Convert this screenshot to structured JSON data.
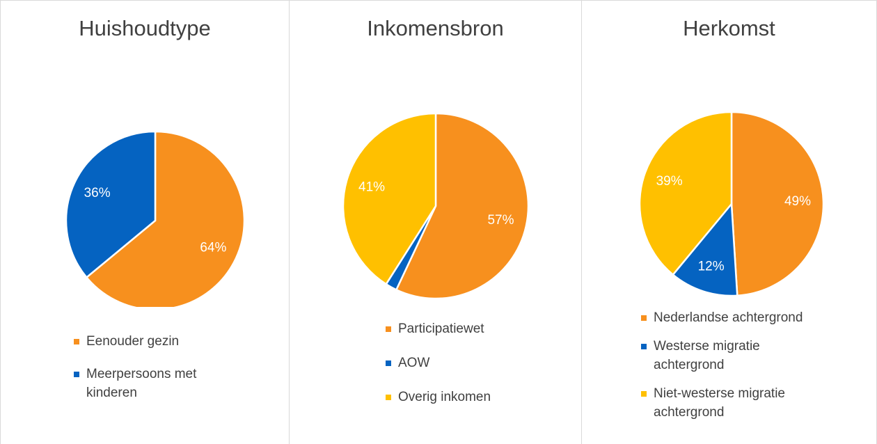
{
  "chart_data": [
    {
      "type": "pie",
      "title": "Huishoudtype",
      "categories": [
        "Eenouder gezin",
        "Meerpersoons met kinderen"
      ],
      "values": [
        64,
        36
      ],
      "colors": [
        "#F7901E",
        "#0563C1"
      ]
    },
    {
      "type": "pie",
      "title": "Inkomensbron",
      "categories": [
        "Participatiewet",
        "AOW",
        "Overig inkomen"
      ],
      "values": [
        57,
        2,
        41
      ],
      "colors": [
        "#F7901E",
        "#0563C1",
        "#FFC000"
      ]
    },
    {
      "type": "pie",
      "title": "Herkomst",
      "categories": [
        "Nederlandse achtergrond",
        "Westerse migratie achtergrond",
        "Niet-westerse migratie achtergrond"
      ],
      "values": [
        49,
        12,
        39
      ],
      "colors": [
        "#F7901E",
        "#0563C1",
        "#FFC000"
      ]
    }
  ]
}
